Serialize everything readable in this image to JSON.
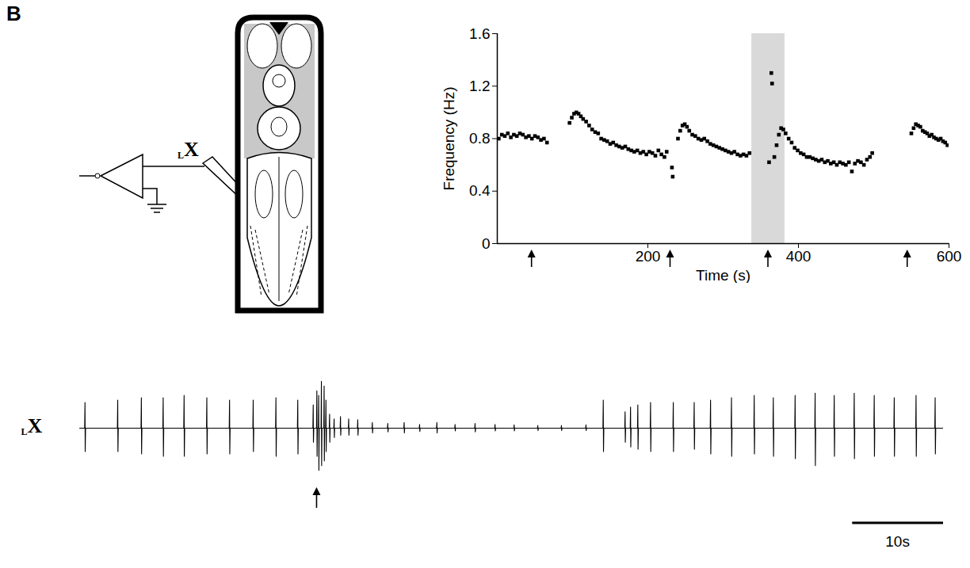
{
  "panel": "B",
  "diagram": {
    "recording_label": {
      "prefix": "L",
      "main": "X"
    }
  },
  "chart_data": [
    {
      "type": "scatter",
      "marker": "square",
      "color": "#000000",
      "xlabel": "Time (s)",
      "ylabel": "Frequency (Hz)",
      "xlim": [
        0,
        600
      ],
      "xticks": [
        200,
        400,
        600
      ],
      "ylim": [
        0,
        1.6
      ],
      "yticks": [
        0,
        0.4,
        0.8,
        1.2,
        1.6
      ],
      "stimuli": [
        46,
        230,
        360,
        545
      ],
      "shaded": [
        338,
        382
      ],
      "x": [
        2,
        6,
        10,
        14,
        18,
        22,
        26,
        30,
        34,
        38,
        42,
        46,
        50,
        54,
        58,
        62,
        66,
        96,
        99,
        102,
        105,
        108,
        111,
        114,
        118,
        122,
        126,
        130,
        134,
        138,
        142,
        146,
        150,
        154,
        158,
        162,
        166,
        170,
        174,
        178,
        182,
        186,
        190,
        194,
        198,
        202,
        206,
        210,
        214,
        218,
        222,
        225,
        232,
        233,
        240,
        243,
        246,
        249,
        252,
        255,
        259,
        263,
        267,
        271,
        275,
        279,
        283,
        287,
        291,
        295,
        299,
        303,
        307,
        311,
        315,
        319,
        323,
        327,
        331,
        335,
        361,
        364,
        365,
        368,
        371,
        374,
        377,
        380,
        383,
        387,
        391,
        395,
        399,
        403,
        407,
        411,
        415,
        419,
        423,
        427,
        431,
        435,
        439,
        443,
        447,
        451,
        455,
        459,
        463,
        467,
        471,
        475,
        479,
        483,
        487,
        491,
        495,
        498,
        550,
        553,
        556,
        559,
        562,
        565,
        568,
        571,
        574,
        577,
        580,
        583,
        586,
        589,
        592,
        595,
        598
      ],
      "values": [
        0.8,
        0.83,
        0.82,
        0.84,
        0.81,
        0.83,
        0.82,
        0.84,
        0.83,
        0.81,
        0.82,
        0.8,
        0.82,
        0.81,
        0.79,
        0.8,
        0.77,
        0.92,
        0.96,
        0.99,
        1.0,
        0.99,
        0.97,
        0.95,
        0.93,
        0.9,
        0.87,
        0.85,
        0.84,
        0.8,
        0.79,
        0.78,
        0.76,
        0.77,
        0.75,
        0.74,
        0.73,
        0.74,
        0.72,
        0.71,
        0.7,
        0.71,
        0.69,
        0.7,
        0.68,
        0.7,
        0.69,
        0.67,
        0.71,
        0.68,
        0.66,
        0.7,
        0.58,
        0.51,
        0.8,
        0.86,
        0.9,
        0.91,
        0.89,
        0.86,
        0.83,
        0.82,
        0.8,
        0.79,
        0.8,
        0.78,
        0.76,
        0.75,
        0.74,
        0.73,
        0.72,
        0.71,
        0.7,
        0.69,
        0.7,
        0.68,
        0.67,
        0.68,
        0.67,
        0.69,
        0.62,
        1.3,
        1.22,
        0.66,
        0.75,
        0.83,
        0.88,
        0.87,
        0.84,
        0.8,
        0.77,
        0.73,
        0.71,
        0.69,
        0.68,
        0.66,
        0.66,
        0.65,
        0.64,
        0.63,
        0.64,
        0.62,
        0.63,
        0.61,
        0.62,
        0.6,
        0.62,
        0.61,
        0.6,
        0.62,
        0.55,
        0.61,
        0.63,
        0.62,
        0.6,
        0.64,
        0.66,
        0.69,
        0.84,
        0.88,
        0.91,
        0.9,
        0.89,
        0.86,
        0.85,
        0.84,
        0.82,
        0.83,
        0.81,
        0.8,
        0.79,
        0.8,
        0.78,
        0.77,
        0.75
      ]
    },
    {
      "type": "line",
      "color": "#000000",
      "tick_labels": false,
      "label": {
        "prefix": "L",
        "main": "X"
      },
      "xlim": [
        0,
        95
      ],
      "ylim": [
        -1.1,
        1.1
      ],
      "stimuli": [
        26.1
      ],
      "scale_bar": {
        "value": 10,
        "label": "10s"
      },
      "spikes": {
        "t": [
          0.6,
          4.2,
          6.8,
          9.2,
          11.5,
          14.0,
          16.5,
          19.1,
          21.6,
          24.0,
          25.7,
          26.1,
          26.3,
          26.6,
          26.9,
          27.1,
          27.5,
          28.0,
          28.7,
          29.6,
          30.6,
          32.2,
          33.9,
          35.7,
          37.4,
          39.3,
          41.3,
          43.5,
          45.7,
          47.8,
          50.4,
          53.0,
          55.7,
          57.6,
          60.0,
          60.6,
          61.4,
          62.8,
          65.3,
          67.6,
          69.4,
          71.7,
          74.2,
          76.3,
          78.7,
          80.9,
          83.0,
          85.2,
          87.4,
          89.6,
          92.0,
          94.1
        ],
        "up": [
          0.55,
          0.6,
          0.65,
          0.65,
          0.7,
          0.65,
          0.6,
          0.6,
          0.65,
          0.6,
          0.5,
          0.8,
          0.7,
          1.0,
          0.9,
          0.6,
          0.3,
          0.2,
          0.25,
          0.2,
          0.18,
          0.12,
          0.1,
          0.12,
          0.08,
          0.12,
          0.08,
          0.1,
          0.08,
          0.07,
          0.06,
          0.06,
          0.07,
          0.6,
          0.35,
          0.45,
          0.5,
          0.55,
          0.55,
          0.55,
          0.6,
          0.65,
          0.7,
          0.65,
          0.7,
          0.75,
          0.7,
          0.75,
          0.7,
          0.65,
          0.7,
          0.65
        ],
        "down": [
          0.5,
          0.5,
          0.55,
          0.6,
          0.6,
          0.55,
          0.55,
          0.5,
          0.6,
          0.55,
          0.3,
          0.6,
          0.9,
          0.8,
          0.7,
          0.5,
          0.3,
          0.2,
          0.15,
          0.15,
          0.15,
          0.1,
          0.08,
          0.1,
          0.07,
          0.1,
          0.06,
          0.08,
          0.06,
          0.06,
          0.05,
          0.05,
          0.05,
          0.5,
          0.3,
          0.4,
          0.45,
          0.5,
          0.5,
          0.45,
          0.55,
          0.6,
          0.55,
          0.6,
          0.65,
          0.8,
          0.6,
          0.65,
          0.6,
          0.6,
          0.6,
          0.55
        ]
      }
    }
  ]
}
